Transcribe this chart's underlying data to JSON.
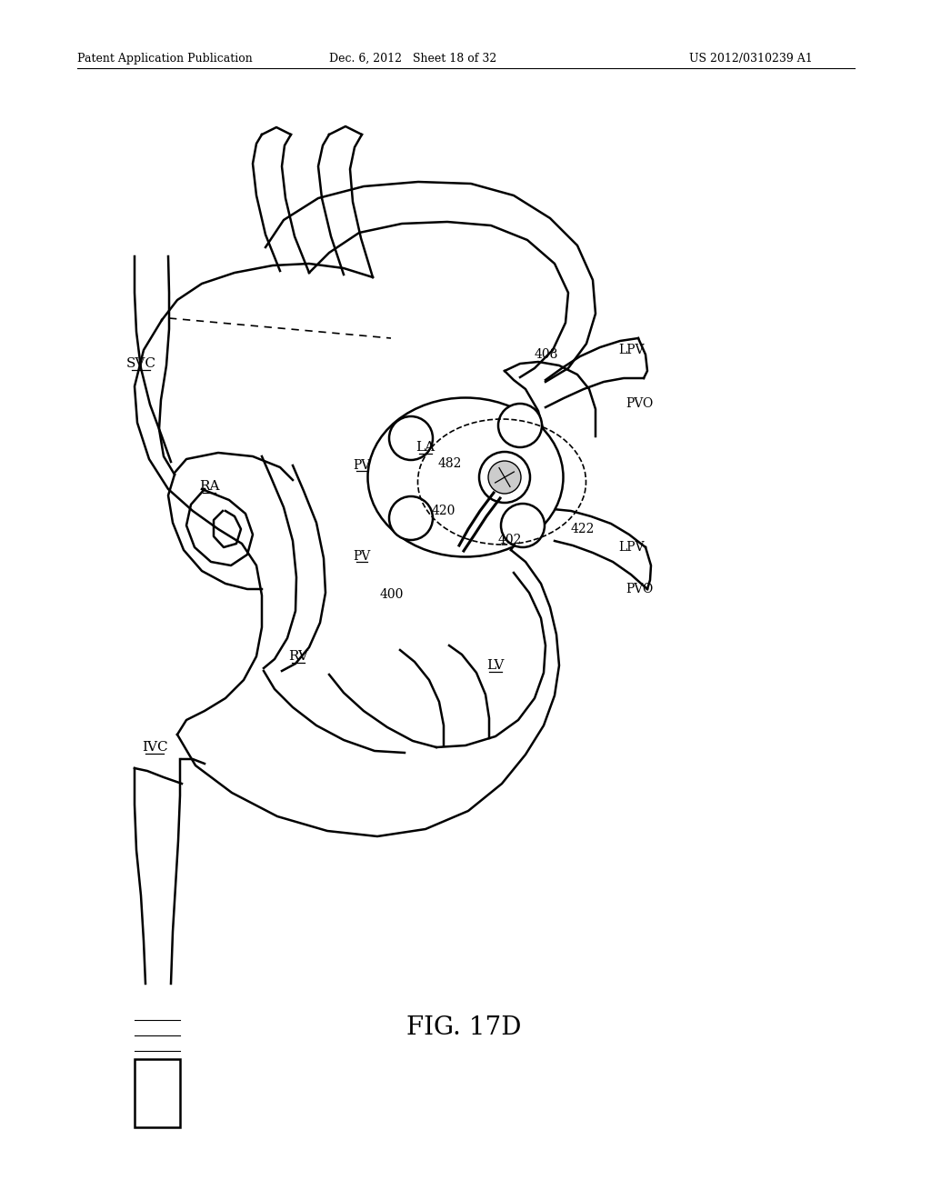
{
  "header_left": "Patent Application Publication",
  "header_mid": "Dec. 6, 2012   Sheet 18 of 32",
  "header_right": "US 2012/0310239 A1",
  "fig_caption": "FIG. 17D",
  "bg_color": "#ffffff",
  "lc": "#000000",
  "lw": 1.8
}
